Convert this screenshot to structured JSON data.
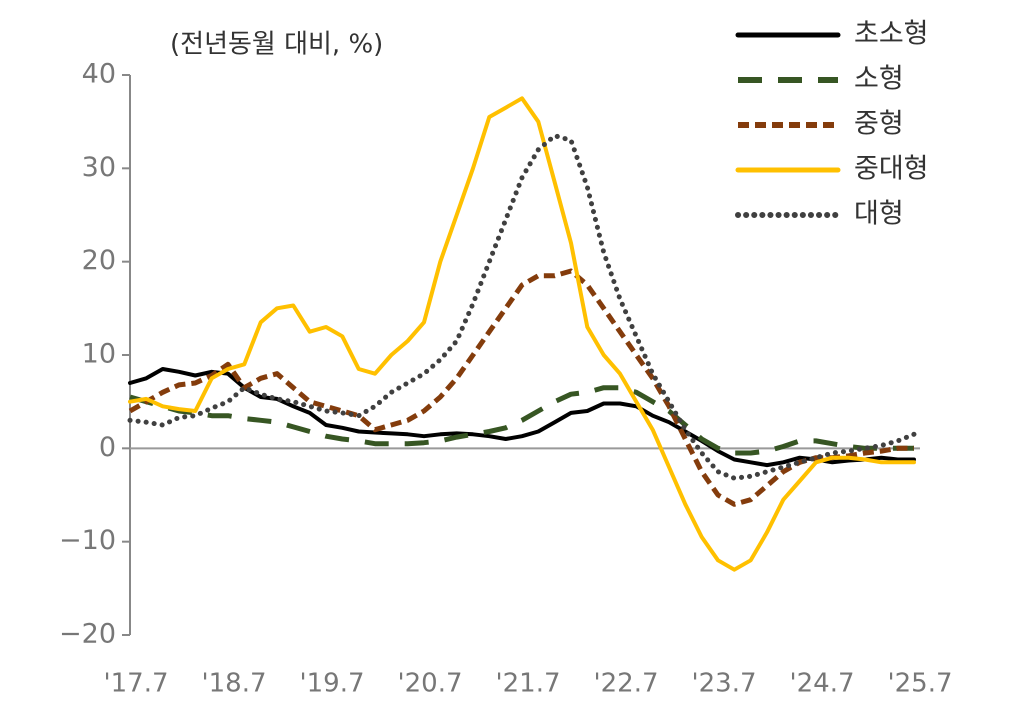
{
  "chart_data": {
    "type": "line",
    "y_label": "(전년동월 대비, %)",
    "categories": [
      "'17.7",
      null,
      null,
      null,
      null,
      null,
      "'18.7",
      null,
      null,
      null,
      null,
      null,
      "'19.7",
      null,
      null,
      null,
      null,
      null,
      "'20.7",
      null,
      null,
      null,
      null,
      null,
      "'21.7",
      null,
      null,
      null,
      null,
      null,
      "'22.7",
      null,
      null,
      null,
      null,
      null,
      "'23.7",
      null,
      null,
      null,
      null,
      null,
      "'24.7",
      null,
      null,
      null,
      null,
      null,
      "'25.7"
    ],
    "ylim": [
      -20,
      40
    ],
    "yticks": [
      {
        "value": -20,
        "label": "−20"
      },
      {
        "value": -10,
        "label": "−10"
      },
      0,
      10,
      20,
      30,
      40
    ],
    "legend": "top-right",
    "series": [
      {
        "name": "초소형",
        "color": "#000000",
        "style": "solid",
        "values": [
          7,
          7.5,
          8.5,
          8.2,
          7.8,
          8.2,
          8,
          6.5,
          5.5,
          5.3,
          4.5,
          3.8,
          2.5,
          2.2,
          1.8,
          1.7,
          1.6,
          1.5,
          1.3,
          1.5,
          1.6,
          1.5,
          1.3,
          1.0,
          1.3,
          1.8,
          2.8,
          3.8,
          4.0,
          4.8,
          4.8,
          4.5,
          3.5,
          2.8,
          1.8,
          0.8,
          -0.3,
          -1.2,
          -1.5,
          -1.8,
          -1.5,
          -1.0,
          -1.2,
          -1.5,
          -1.3,
          -1.2,
          -1.0,
          -1.2,
          -1.2
        ]
      },
      {
        "name": "소형",
        "color": "#375623",
        "style": "long-dash",
        "values": [
          5.5,
          5,
          4.5,
          4,
          3.8,
          3.5,
          3.5,
          3.2,
          3,
          2.8,
          2.3,
          1.8,
          1.3,
          1,
          0.8,
          0.5,
          0.5,
          0.5,
          0.6,
          0.8,
          1.2,
          1.5,
          1.8,
          2.2,
          3,
          4,
          5,
          5.8,
          6,
          6.5,
          6.5,
          6,
          5,
          4,
          2.5,
          1,
          0,
          -0.5,
          -0.5,
          -0.3,
          0.2,
          0.8,
          0.8,
          0.5,
          0.2,
          0,
          0,
          0,
          0
        ]
      },
      {
        "name": "중형",
        "color": "#843c0c",
        "style": "dash",
        "values": [
          4,
          5,
          6,
          6.8,
          7,
          7.8,
          9,
          6.5,
          7.5,
          8,
          6.5,
          5,
          4.5,
          4,
          3.5,
          2,
          2.5,
          3,
          4,
          5.5,
          7.5,
          10,
          12.5,
          15,
          17.5,
          18.5,
          18.5,
          19,
          17.5,
          15,
          12.5,
          10,
          7.5,
          4.5,
          1,
          -2.5,
          -5,
          -6,
          -5.5,
          -4,
          -2.5,
          -1.5,
          -1,
          -1,
          -0.8,
          -0.5,
          -0.3,
          0,
          0
        ]
      },
      {
        "name": "중대형",
        "color": "#ffc000",
        "style": "solid",
        "values": [
          5,
          5.3,
          4.5,
          4.2,
          4,
          7.5,
          8.5,
          9,
          13.5,
          15,
          15.3,
          12.5,
          13,
          12,
          8.5,
          8,
          10,
          11.5,
          13.5,
          20,
          25,
          30,
          35.5,
          36.5,
          37.5,
          35,
          28.5,
          22,
          13,
          10,
          8,
          5,
          2,
          -2,
          -6,
          -9.5,
          -12,
          -13,
          -12,
          -9,
          -5.5,
          -3.5,
          -1.5,
          -1,
          -1,
          -1.2,
          -1.5,
          -1.5,
          -1.5
        ]
      },
      {
        "name": "대형",
        "color": "#404040",
        "style": "dot",
        "values": [
          3,
          2.8,
          2.5,
          3.3,
          3.5,
          4.3,
          5,
          6.5,
          5.8,
          5.3,
          5,
          4.5,
          4,
          3.8,
          3.5,
          4.5,
          6,
          7,
          8,
          9.5,
          11.5,
          15.5,
          20,
          24.5,
          29,
          32,
          33.5,
          33,
          28,
          21,
          16,
          12,
          8,
          5,
          2,
          -0.5,
          -2.5,
          -3.2,
          -3,
          -2.5,
          -2,
          -1.5,
          -1,
          -0.5,
          -0.3,
          0,
          0.3,
          0.8,
          1.5
        ]
      }
    ]
  }
}
